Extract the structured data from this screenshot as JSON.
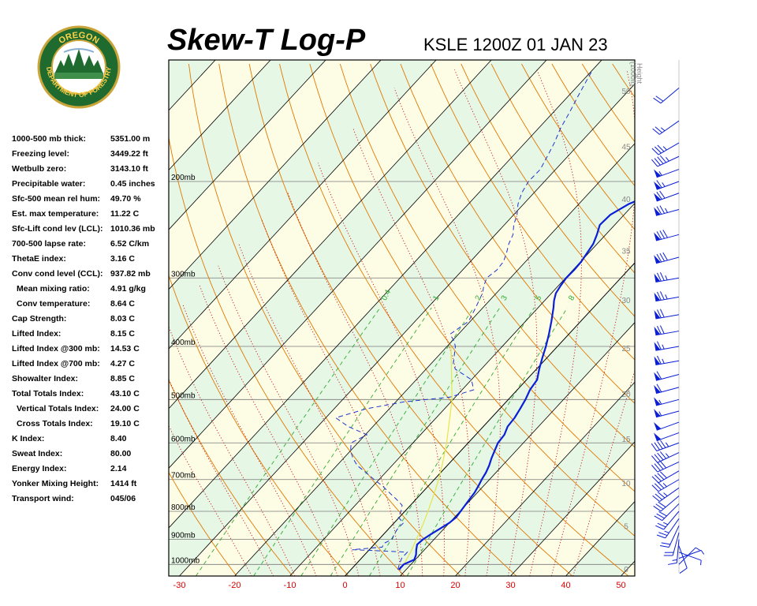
{
  "header": {
    "title": "Skew-T Log-P",
    "station": "KSLE 1200Z 01 JAN 23"
  },
  "logo": {
    "text_top": "OREGON",
    "text_bottom": "DEPARTMENT OF FORESTRY"
  },
  "indices": [
    {
      "label": "1000-500 mb thick:",
      "value": "5351.00 m",
      "indent": false
    },
    {
      "label": "Freezing level:",
      "value": "3449.22 ft",
      "indent": false
    },
    {
      "label": "Wetbulb zero:",
      "value": "3143.10 ft",
      "indent": false
    },
    {
      "label": "Precipitable water:",
      "value": "0.45 inches",
      "indent": false
    },
    {
      "label": "Sfc-500 mean rel hum:",
      "value": "49.70 %",
      "indent": false
    },
    {
      "label": "Est. max temperature:",
      "value": "11.22 C",
      "indent": false
    },
    {
      "label": "Sfc-Lift cond lev (LCL):",
      "value": "1010.36 mb",
      "indent": false
    },
    {
      "label": "700-500 lapse rate:",
      "value": "6.52 C/km",
      "indent": false
    },
    {
      "label": "ThetaE index:",
      "value": "3.16 C",
      "indent": false
    },
    {
      "label": "Conv cond level (CCL):",
      "value": "937.82 mb",
      "indent": false
    },
    {
      "label": "Mean mixing ratio:",
      "value": "4.91 g/kg",
      "indent": true
    },
    {
      "label": "Conv temperature:",
      "value": "8.64 C",
      "indent": true
    },
    {
      "label": "Cap Strength:",
      "value": "8.03 C",
      "indent": false
    },
    {
      "label": "Lifted Index:",
      "value": "8.15 C",
      "indent": false
    },
    {
      "label": "Lifted Index @300 mb:",
      "value": "14.53 C",
      "indent": false
    },
    {
      "label": "Lifted Index @700 mb:",
      "value": "4.27 C",
      "indent": false
    },
    {
      "label": "Showalter Index:",
      "value": "8.85 C",
      "indent": false
    },
    {
      "label": "Total Totals Index:",
      "value": "43.10 C",
      "indent": false
    },
    {
      "label": "Vertical Totals Index:",
      "value": "24.00 C",
      "indent": true
    },
    {
      "label": "Cross Totals Index:",
      "value": "19.10 C",
      "indent": true
    },
    {
      "label": "K Index:",
      "value": "8.40",
      "indent": false
    },
    {
      "label": "Sweat Index:",
      "value": "80.00",
      "indent": false
    },
    {
      "label": "Energy Index:",
      "value": "2.14",
      "indent": false
    },
    {
      "label": "Yonker Mixing Height:",
      "value": "1414 ft",
      "indent": false
    },
    {
      "label": "Transport wind:",
      "value": "045/06",
      "indent": false
    }
  ],
  "chart_data": {
    "type": "line",
    "title": "Skew-T Log-P",
    "subtitle": "KSLE 1200Z 01 JAN 23",
    "x_ticks": [
      -30,
      -20,
      -10,
      0,
      10,
      20,
      30,
      40,
      50
    ],
    "pressure_levels": [
      {
        "p": 200,
        "label": "200mb"
      },
      {
        "p": 300,
        "label": "300mb"
      },
      {
        "p": 400,
        "label": "400mb"
      },
      {
        "p": 500,
        "label": "500mb"
      },
      {
        "p": 600,
        "label": "600mb"
      },
      {
        "p": 700,
        "label": "700mb"
      },
      {
        "p": 800,
        "label": "800mb"
      },
      {
        "p": 900,
        "label": "900mb"
      },
      {
        "p": 1000,
        "label": "1000mb"
      }
    ],
    "height_axis": {
      "title_lines": [
        "Height",
        "(1000ft)"
      ],
      "ticks": [
        {
          "value": "0",
          "p": 1022
        },
        {
          "value": "5",
          "p": 853
        },
        {
          "value": "10",
          "p": 712
        },
        {
          "value": "15",
          "p": 592
        },
        {
          "value": "20",
          "p": 490
        },
        {
          "value": "25",
          "p": 404
        },
        {
          "value": "30",
          "p": 330
        },
        {
          "value": "35",
          "p": 268
        },
        {
          "value": "40",
          "p": 216
        },
        {
          "value": "45",
          "p": 173
        },
        {
          "value": "50",
          "p": 137
        }
      ]
    },
    "mixing_ratio_labels": [
      "0.4",
      "1",
      "2",
      "3",
      "5",
      "8"
    ],
    "temperature": [
      {
        "p": 1022,
        "t": 8.7
      },
      {
        "p": 1000,
        "t": 8.7
      },
      {
        "p": 980,
        "t": 9.8
      },
      {
        "p": 960,
        "t": 9.3
      },
      {
        "p": 940,
        "t": 8.5
      },
      {
        "p": 920,
        "t": 7.8
      },
      {
        "p": 900,
        "t": 8.0
      },
      {
        "p": 880,
        "t": 8.6
      },
      {
        "p": 860,
        "t": 9.3
      },
      {
        "p": 840,
        "t": 10.0
      },
      {
        "p": 820,
        "t": 10.3
      },
      {
        "p": 800,
        "t": 10.1
      },
      {
        "p": 780,
        "t": 9.9
      },
      {
        "p": 760,
        "t": 9.7
      },
      {
        "p": 740,
        "t": 9.5
      },
      {
        "p": 720,
        "t": 9.1
      },
      {
        "p": 700,
        "t": 8.6
      },
      {
        "p": 680,
        "t": 8.2
      },
      {
        "p": 660,
        "t": 7.6
      },
      {
        "p": 640,
        "t": 6.8
      },
      {
        "p": 620,
        "t": 6.1
      },
      {
        "p": 600,
        "t": 5.4
      },
      {
        "p": 580,
        "t": 5.2
      },
      {
        "p": 560,
        "t": 4.4
      },
      {
        "p": 540,
        "t": 4.2
      },
      {
        "p": 520,
        "t": 3.7
      },
      {
        "p": 500,
        "t": 3.1
      },
      {
        "p": 480,
        "t": 2.3
      },
      {
        "p": 460,
        "t": 1.9
      },
      {
        "p": 440,
        "t": 0.5
      },
      {
        "p": 420,
        "t": -0.8
      },
      {
        "p": 400,
        "t": -2.1
      },
      {
        "p": 380,
        "t": -3.6
      },
      {
        "p": 360,
        "t": -5.3
      },
      {
        "p": 340,
        "t": -7.2
      },
      {
        "p": 330,
        "t": -8.3
      },
      {
        "p": 320,
        "t": -9.2
      },
      {
        "p": 310,
        "t": -9.6
      },
      {
        "p": 300,
        "t": -9.9
      },
      {
        "p": 290,
        "t": -9.8
      },
      {
        "p": 280,
        "t": -9.9
      },
      {
        "p": 270,
        "t": -10.3
      },
      {
        "p": 260,
        "t": -10.7
      },
      {
        "p": 250,
        "t": -11.6
      },
      {
        "p": 240,
        "t": -12.7
      },
      {
        "p": 230,
        "t": -12.5
      },
      {
        "p": 220,
        "t": -11.0
      },
      {
        "p": 210,
        "t": -8.2
      },
      {
        "p": 205,
        "t": -8.2
      },
      {
        "p": 200,
        "t": -9.9
      },
      {
        "p": 180,
        "t": -12.7
      },
      {
        "p": 160,
        "t": -15.3
      },
      {
        "p": 140,
        "t": -18.3
      },
      {
        "p": 125,
        "t": -20.7
      }
    ],
    "dewpoint": [
      {
        "p": 1022,
        "t": 8.5
      },
      {
        "p": 1000,
        "t": 7.9
      },
      {
        "p": 975,
        "t": 7.3
      },
      {
        "p": 950,
        "t": 7.3
      },
      {
        "p": 945,
        "t": 2.6
      },
      {
        "p": 940,
        "t": -3.1
      },
      {
        "p": 930,
        "t": 1.9
      },
      {
        "p": 915,
        "t": 1.6
      },
      {
        "p": 900,
        "t": 2.4
      },
      {
        "p": 880,
        "t": 1.9
      },
      {
        "p": 860,
        "t": 1.6
      },
      {
        "p": 840,
        "t": 1.7
      },
      {
        "p": 820,
        "t": -0.2
      },
      {
        "p": 800,
        "t": -0.7
      },
      {
        "p": 780,
        "t": -1.5
      },
      {
        "p": 760,
        "t": -3.6
      },
      {
        "p": 740,
        "t": -5.9
      },
      {
        "p": 720,
        "t": -8.2
      },
      {
        "p": 700,
        "t": -10.9
      },
      {
        "p": 680,
        "t": -13.5
      },
      {
        "p": 660,
        "t": -16.3
      },
      {
        "p": 640,
        "t": -18.3
      },
      {
        "p": 620,
        "t": -20.0
      },
      {
        "p": 600,
        "t": -21.2
      },
      {
        "p": 580,
        "t": -19.7
      },
      {
        "p": 560,
        "t": -24.5
      },
      {
        "p": 540,
        "t": -28.2
      },
      {
        "p": 520,
        "t": -24.2
      },
      {
        "p": 505,
        "t": -18.5
      },
      {
        "p": 495,
        "t": -11.0
      },
      {
        "p": 480,
        "t": -7.9
      },
      {
        "p": 460,
        "t": -10.0
      },
      {
        "p": 440,
        "t": -14.7
      },
      {
        "p": 430,
        "t": -16.0
      },
      {
        "p": 420,
        "t": -16.8
      },
      {
        "p": 400,
        "t": -18.5
      },
      {
        "p": 390,
        "t": -19.8
      },
      {
        "p": 380,
        "t": -21.5
      },
      {
        "p": 360,
        "t": -20.3
      },
      {
        "p": 340,
        "t": -21.3
      },
      {
        "p": 320,
        "t": -22.5
      },
      {
        "p": 310,
        "t": -23.5
      },
      {
        "p": 300,
        "t": -24.3
      },
      {
        "p": 290,
        "t": -23.8
      },
      {
        "p": 280,
        "t": -24.0
      },
      {
        "p": 270,
        "t": -24.9
      },
      {
        "p": 260,
        "t": -26.0
      },
      {
        "p": 250,
        "t": -26.8
      },
      {
        "p": 240,
        "t": -28.3
      },
      {
        "p": 230,
        "t": -29.4
      },
      {
        "p": 220,
        "t": -31.0
      },
      {
        "p": 210,
        "t": -32.2
      },
      {
        "p": 200,
        "t": -32.9
      },
      {
        "p": 190,
        "t": -32.8
      },
      {
        "p": 180,
        "t": -33.7
      },
      {
        "p": 170,
        "t": -34.7
      },
      {
        "p": 160,
        "t": -36.0
      },
      {
        "p": 150,
        "t": -37.0
      },
      {
        "p": 140,
        "t": -38.2
      },
      {
        "p": 130,
        "t": -39.4
      },
      {
        "p": 125,
        "t": -40.0
      }
    ],
    "parcel": [
      {
        "p": 1000,
        "t": 8.7
      },
      {
        "p": 950,
        "t": 7.9
      },
      {
        "p": 900,
        "t": 6.8
      },
      {
        "p": 850,
        "t": 5.6
      },
      {
        "p": 800,
        "t": 4.2
      },
      {
        "p": 750,
        "t": 2.6
      },
      {
        "p": 700,
        "t": 0.8
      },
      {
        "p": 650,
        "t": -1.4
      },
      {
        "p": 600,
        "t": -3.9
      },
      {
        "p": 550,
        "t": -6.9
      },
      {
        "p": 500,
        "t": -10.2
      },
      {
        "p": 450,
        "t": -14.5
      },
      {
        "p": 400,
        "t": -19.3
      }
    ],
    "wind_barbs": [
      {
        "p": 1000,
        "dir": 45,
        "spd": 6
      },
      {
        "p": 975,
        "dir": 70,
        "spd": 5
      },
      {
        "p": 950,
        "dir": 110,
        "spd": 5
      },
      {
        "p": 925,
        "dir": 160,
        "spd": 10
      },
      {
        "p": 900,
        "dir": 185,
        "spd": 15
      },
      {
        "p": 875,
        "dir": 195,
        "spd": 20
      },
      {
        "p": 850,
        "dir": 205,
        "spd": 20
      },
      {
        "p": 825,
        "dir": 215,
        "spd": 25
      },
      {
        "p": 800,
        "dir": 220,
        "spd": 25
      },
      {
        "p": 775,
        "dir": 225,
        "spd": 30
      },
      {
        "p": 750,
        "dir": 230,
        "spd": 30
      },
      {
        "p": 725,
        "dir": 235,
        "spd": 35
      },
      {
        "p": 700,
        "dir": 240,
        "spd": 35
      },
      {
        "p": 675,
        "dir": 240,
        "spd": 40
      },
      {
        "p": 650,
        "dir": 245,
        "spd": 40
      },
      {
        "p": 625,
        "dir": 245,
        "spd": 45
      },
      {
        "p": 600,
        "dir": 250,
        "spd": 45
      },
      {
        "p": 575,
        "dir": 250,
        "spd": 50
      },
      {
        "p": 550,
        "dir": 250,
        "spd": 50
      },
      {
        "p": 525,
        "dir": 255,
        "spd": 55
      },
      {
        "p": 500,
        "dir": 255,
        "spd": 55
      },
      {
        "p": 475,
        "dir": 255,
        "spd": 60
      },
      {
        "p": 450,
        "dir": 255,
        "spd": 60
      },
      {
        "p": 425,
        "dir": 260,
        "spd": 65
      },
      {
        "p": 400,
        "dir": 260,
        "spd": 65
      },
      {
        "p": 375,
        "dir": 260,
        "spd": 70
      },
      {
        "p": 350,
        "dir": 260,
        "spd": 70
      },
      {
        "p": 325,
        "dir": 260,
        "spd": 75
      },
      {
        "p": 300,
        "dir": 260,
        "spd": 75
      },
      {
        "p": 275,
        "dir": 255,
        "spd": 80
      },
      {
        "p": 250,
        "dir": 255,
        "spd": 80
      },
      {
        "p": 225,
        "dir": 255,
        "spd": 75
      },
      {
        "p": 210,
        "dir": 250,
        "spd": 70
      },
      {
        "p": 200,
        "dir": 250,
        "spd": 65
      },
      {
        "p": 190,
        "dir": 250,
        "spd": 55
      },
      {
        "p": 180,
        "dir": 245,
        "spd": 45
      },
      {
        "p": 170,
        "dir": 240,
        "spd": 35
      },
      {
        "p": 155,
        "dir": 235,
        "spd": 25
      },
      {
        "p": 135,
        "dir": 230,
        "spd": 20
      }
    ],
    "colors": {
      "temperature": "#0b1fd6",
      "dewpoint": "#2233cc",
      "parcel": "#e8e44a",
      "isotherm": "#000000",
      "dry_adiabat": "#e07800",
      "moist_adiabat": "#cc1111",
      "mixing_ratio": "#33aa33",
      "isobar": "#7a7a7a",
      "band_light": "#fdfde6",
      "band_green": "#e6f7e6",
      "x_tick": "#dd0000",
      "height_tick": "#888888",
      "wind_barb": "#0b1fd6"
    }
  }
}
